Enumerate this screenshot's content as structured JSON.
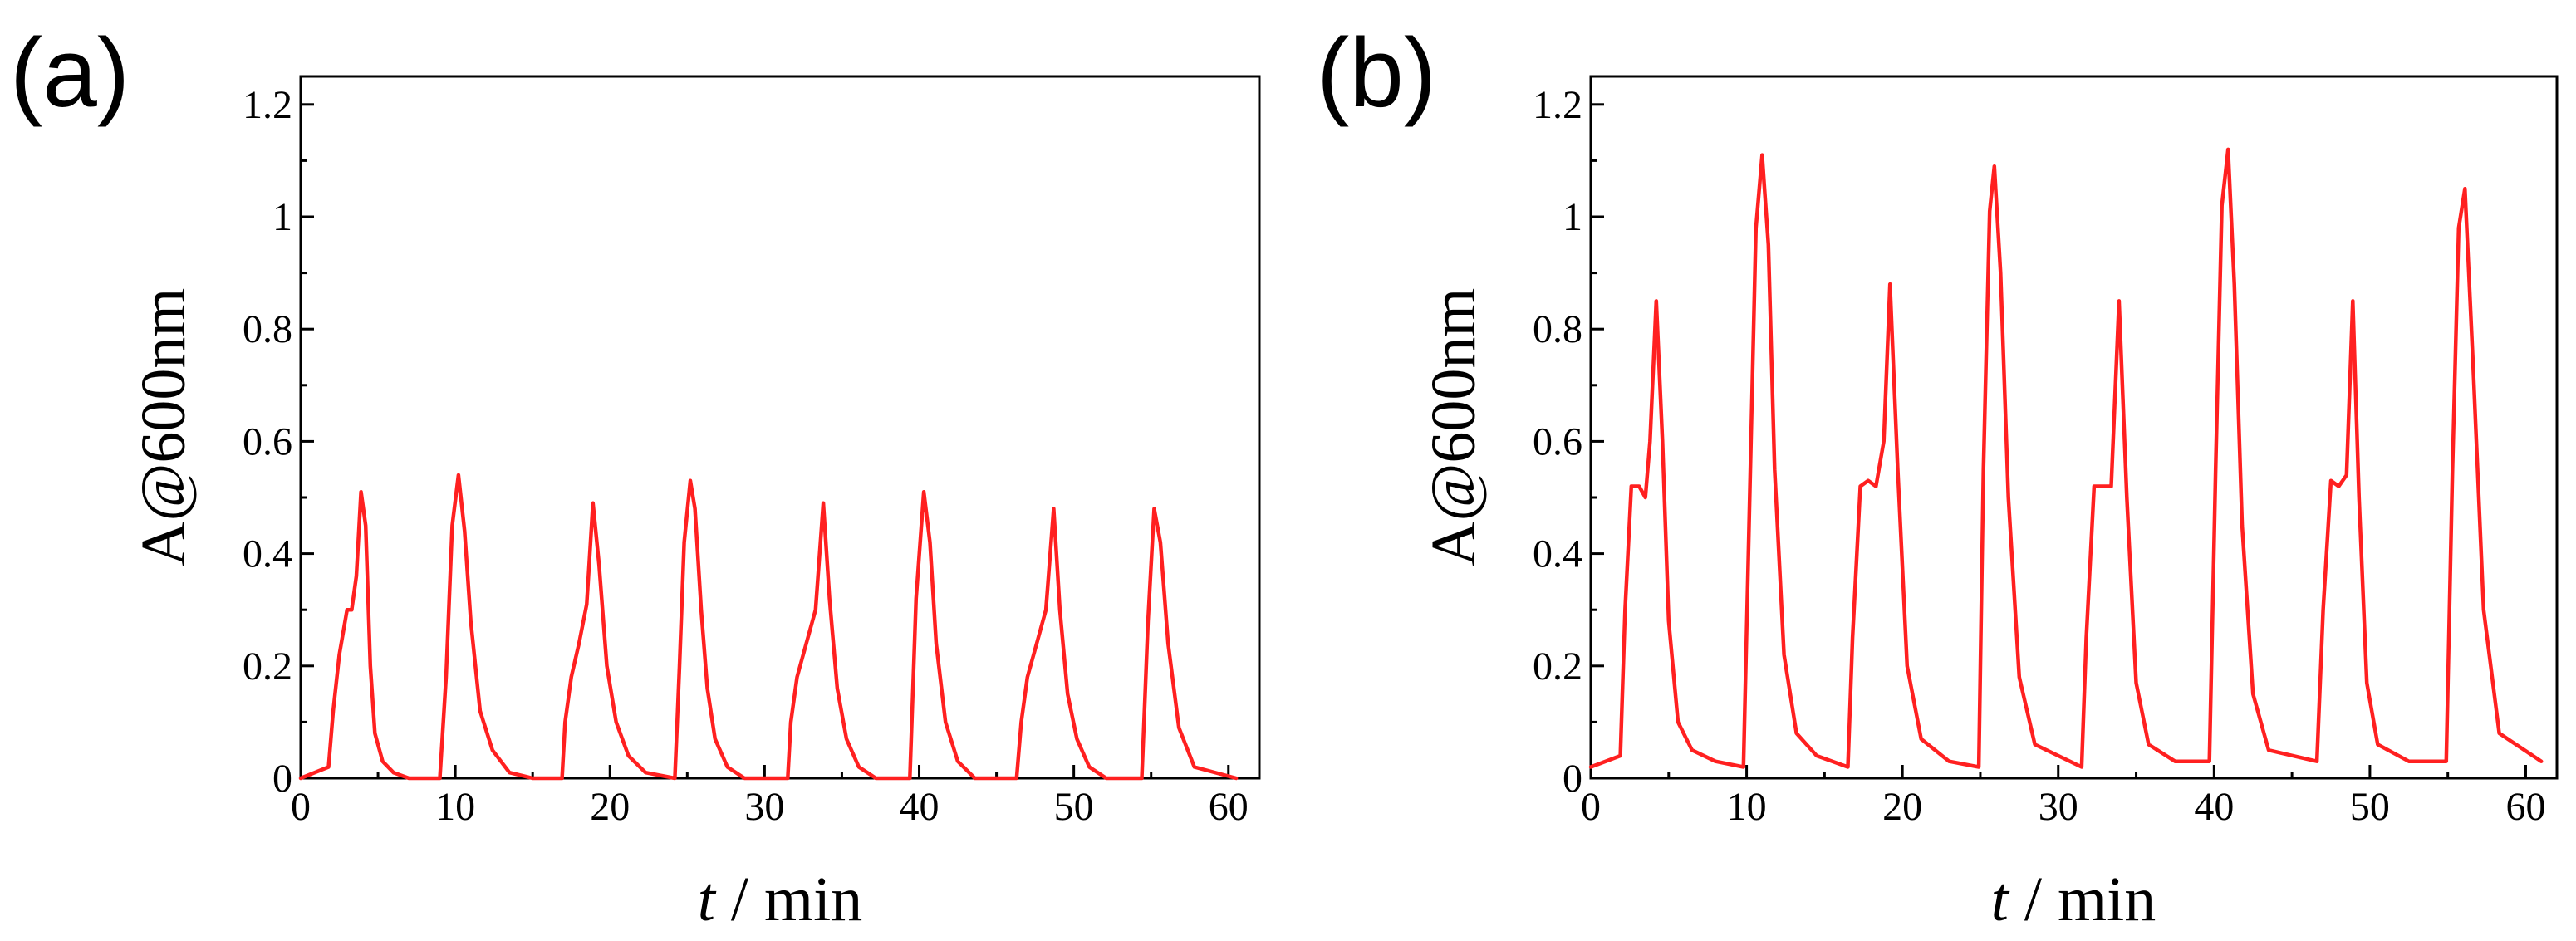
{
  "figure": {
    "panels": [
      "(a)",
      "(b)"
    ]
  },
  "colors": {
    "trace": "#ff2020",
    "axis": "#000000"
  },
  "chart_data": [
    {
      "type": "line",
      "panel_label": "(a)",
      "title": "",
      "xlabel_var": "t",
      "xlabel_unit": " / min",
      "ylabel": "A@600nm",
      "xlim": [
        0,
        62
      ],
      "ylim": [
        0,
        1.25
      ],
      "xticks": [
        0,
        10,
        20,
        30,
        40,
        50,
        60
      ],
      "xtick_labels": [
        "0",
        "10",
        "20",
        "30",
        "40",
        "50",
        "60"
      ],
      "yticks": [
        0,
        0.2,
        0.4,
        0.6,
        0.8,
        1.0,
        1.2
      ],
      "ytick_labels": [
        "0",
        "0.2",
        "0.4",
        "0.6",
        "0.8",
        "1",
        "1.2"
      ],
      "series": [
        {
          "name": "A@600nm",
          "x": [
            0,
            1.8,
            2.1,
            2.5,
            3.0,
            3.3,
            3.6,
            3.9,
            4.2,
            4.5,
            4.8,
            5.3,
            6.0,
            7.0,
            9.0,
            9.4,
            9.8,
            10.2,
            10.6,
            11.0,
            11.6,
            12.4,
            13.5,
            15.0,
            16.9,
            17.1,
            17.5,
            18.0,
            18.5,
            18.9,
            19.3,
            19.8,
            20.4,
            21.2,
            22.3,
            24.2,
            24.5,
            24.8,
            25.2,
            25.5,
            25.9,
            26.3,
            26.8,
            27.6,
            28.7,
            31.5,
            31.7,
            32.1,
            32.7,
            33.3,
            33.8,
            34.2,
            34.7,
            35.3,
            36.1,
            37.2,
            39.4,
            39.8,
            40.3,
            40.7,
            41.1,
            41.7,
            42.5,
            43.6,
            45.5,
            46.3,
            46.6,
            47.0,
            47.6,
            48.2,
            48.7,
            49.1,
            49.6,
            50.2,
            51.0,
            52.1,
            54.4,
            54.8,
            55.2,
            55.6,
            56.1,
            56.8,
            57.8,
            60.5
          ],
          "y": [
            0.0,
            0.02,
            0.12,
            0.22,
            0.3,
            0.3,
            0.36,
            0.51,
            0.45,
            0.2,
            0.08,
            0.03,
            0.01,
            0.0,
            0.0,
            0.18,
            0.45,
            0.54,
            0.44,
            0.28,
            0.12,
            0.05,
            0.01,
            0.0,
            0.0,
            0.1,
            0.18,
            0.24,
            0.31,
            0.49,
            0.38,
            0.2,
            0.1,
            0.04,
            0.01,
            0.0,
            0.2,
            0.42,
            0.53,
            0.48,
            0.3,
            0.16,
            0.07,
            0.02,
            0.0,
            0.0,
            0.1,
            0.18,
            0.24,
            0.3,
            0.49,
            0.32,
            0.16,
            0.07,
            0.02,
            0.0,
            0.0,
            0.32,
            0.51,
            0.42,
            0.24,
            0.1,
            0.03,
            0.0,
            0.0,
            0.0,
            0.1,
            0.18,
            0.24,
            0.3,
            0.48,
            0.3,
            0.15,
            0.07,
            0.02,
            0.0,
            0.0,
            0.28,
            0.48,
            0.42,
            0.24,
            0.09,
            0.02,
            0.0
          ]
        }
      ]
    },
    {
      "type": "line",
      "panel_label": "(b)",
      "title": "",
      "xlabel_var": "t",
      "xlabel_unit": " / min",
      "ylabel": "A@600nm",
      "xlim": [
        0,
        62
      ],
      "ylim": [
        0,
        1.25
      ],
      "xticks": [
        0,
        10,
        20,
        30,
        40,
        50,
        60
      ],
      "xtick_labels": [
        "0",
        "10",
        "20",
        "30",
        "40",
        "50",
        "60"
      ],
      "yticks": [
        0,
        0.2,
        0.4,
        0.6,
        0.8,
        1.0,
        1.2
      ],
      "ytick_labels": [
        "0",
        "0.2",
        "0.4",
        "0.6",
        "0.8",
        "1",
        "1.2"
      ],
      "series": [
        {
          "name": "A@600nm",
          "x": [
            0,
            1.9,
            2.2,
            2.6,
            3.1,
            3.5,
            3.8,
            4.2,
            4.6,
            5.0,
            5.6,
            6.5,
            8.0,
            9.8,
            10.2,
            10.6,
            11.0,
            11.4,
            11.8,
            12.4,
            13.2,
            14.5,
            16.5,
            16.8,
            17.3,
            17.8,
            18.3,
            18.8,
            19.2,
            19.7,
            20.3,
            21.2,
            23.0,
            24.9,
            25.2,
            25.6,
            25.9,
            26.3,
            26.8,
            27.5,
            28.5,
            31.5,
            31.8,
            32.3,
            32.8,
            33.4,
            33.9,
            34.4,
            35.0,
            35.8,
            37.5,
            39.7,
            40.1,
            40.5,
            40.9,
            41.3,
            41.8,
            42.5,
            43.5,
            46.6,
            47.0,
            47.5,
            48.0,
            48.5,
            48.9,
            49.3,
            49.8,
            50.5,
            52.5,
            54.9,
            55.3,
            55.7,
            56.1,
            56.6,
            57.3,
            58.3,
            61.0
          ],
          "y": [
            0.02,
            0.04,
            0.3,
            0.52,
            0.52,
            0.5,
            0.6,
            0.85,
            0.6,
            0.28,
            0.1,
            0.05,
            0.03,
            0.02,
            0.5,
            0.98,
            1.11,
            0.95,
            0.55,
            0.22,
            0.08,
            0.04,
            0.02,
            0.25,
            0.52,
            0.53,
            0.52,
            0.6,
            0.88,
            0.55,
            0.2,
            0.07,
            0.03,
            0.02,
            0.55,
            1.01,
            1.09,
            0.9,
            0.5,
            0.18,
            0.06,
            0.02,
            0.25,
            0.52,
            0.52,
            0.52,
            0.85,
            0.5,
            0.17,
            0.06,
            0.03,
            0.03,
            0.55,
            1.02,
            1.12,
            0.88,
            0.45,
            0.15,
            0.05,
            0.03,
            0.3,
            0.53,
            0.52,
            0.54,
            0.85,
            0.5,
            0.17,
            0.06,
            0.03,
            0.03,
            0.55,
            0.98,
            1.05,
            0.75,
            0.3,
            0.08,
            0.03
          ]
        }
      ]
    }
  ]
}
